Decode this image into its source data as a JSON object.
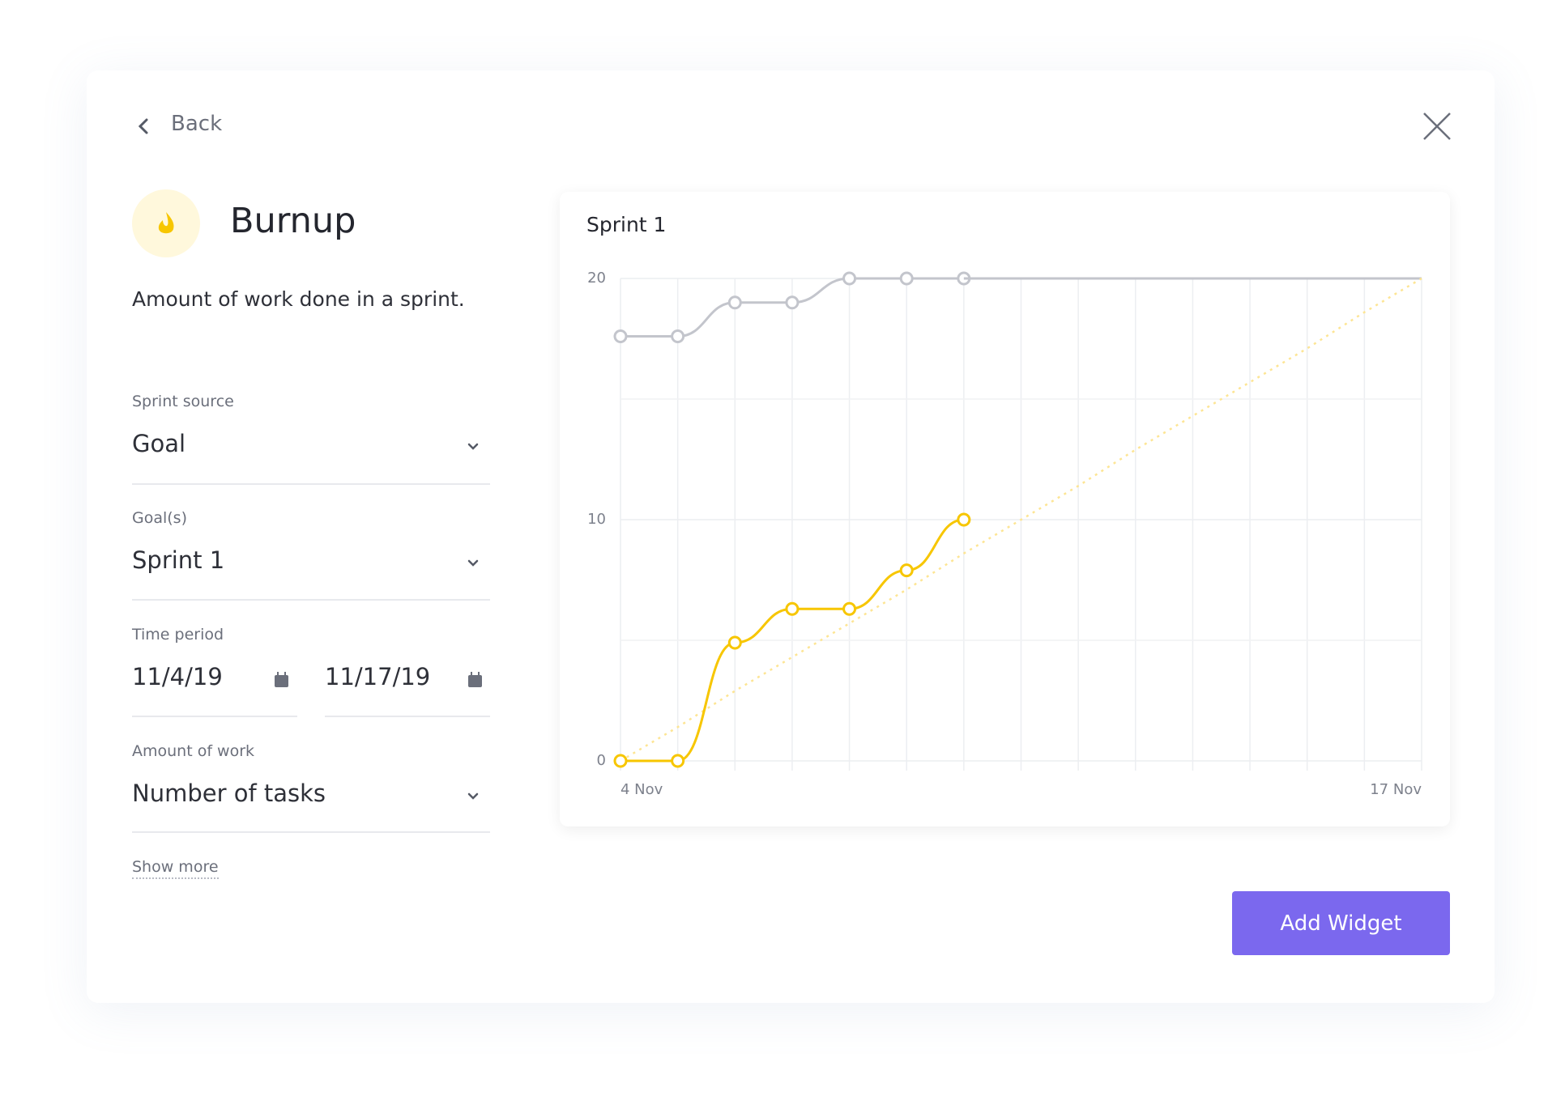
{
  "back": "Back",
  "widget": {
    "title": "Burnup",
    "description": "Amount of work done in a sprint."
  },
  "form": {
    "fields": [
      {
        "label": "Sprint source",
        "value": "Goal"
      },
      {
        "label": "Goal(s)",
        "value": "Sprint 1"
      },
      {
        "label": "Time period",
        "start": "11/4/19",
        "end": "11/17/19"
      },
      {
        "label": "Amount of work",
        "value": "Number of tasks"
      }
    ],
    "show_more": "Show more"
  },
  "chart_data": {
    "type": "line",
    "title": "Sprint 1",
    "categories": [
      "4 Nov",
      null,
      null,
      null,
      null,
      null,
      null,
      null,
      null,
      null,
      null,
      null,
      null,
      null,
      "17 Nov"
    ],
    "series": [
      {
        "color": "#c3c5cc",
        "markers": true,
        "values": [
          17.6,
          17.6,
          19,
          19,
          20,
          20,
          20,
          null,
          null,
          null,
          null,
          null,
          null,
          null,
          null
        ]
      },
      {
        "color": "#c3c5cc",
        "markers": false,
        "values": [
          null,
          null,
          null,
          null,
          null,
          null,
          20,
          20,
          20,
          20,
          20,
          20,
          20,
          20,
          20
        ]
      },
      {
        "color": "#fde594",
        "markers": false,
        "dashed": true,
        "values": [
          0,
          1.4,
          2.9,
          4.3,
          5.7,
          7.1,
          8.6,
          10,
          11.4,
          12.9,
          14.3,
          15.7,
          17.1,
          18.6,
          20
        ]
      },
      {
        "color": "#f7c600",
        "markers": true,
        "values": [
          0,
          0,
          4.9,
          6.3,
          6.3,
          7.9,
          10,
          null,
          null,
          null,
          null,
          null,
          null,
          null,
          null
        ]
      }
    ],
    "ylim": [
      0,
      20
    ],
    "yticks": [
      0,
      10,
      20
    ],
    "y_minor_ticks": [
      5,
      15
    ],
    "grid": true
  },
  "button": "Add Widget"
}
